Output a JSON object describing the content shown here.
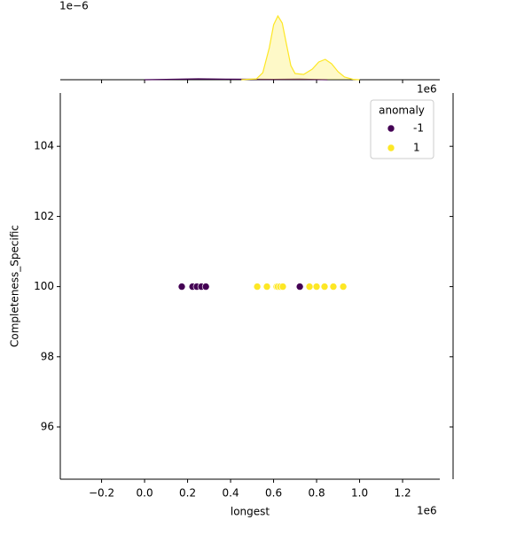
{
  "chart_data": {
    "type": "scatter",
    "xlabel": "longest",
    "ylabel": "Completeness_Specific",
    "x_offset_label": "1e6",
    "marginal_offset_label": "1e−6",
    "xlim": [
      -392000,
      1373000
    ],
    "ylim": [
      94.51,
      105.52
    ],
    "xticks": [
      {
        "value": -200000,
        "label": "−0.2"
      },
      {
        "value": 0,
        "label": "0.0"
      },
      {
        "value": 200000,
        "label": "0.2"
      },
      {
        "value": 400000,
        "label": "0.4"
      },
      {
        "value": 600000,
        "label": "0.6"
      },
      {
        "value": 800000,
        "label": "0.8"
      },
      {
        "value": 1000000,
        "label": "1.0"
      },
      {
        "value": 1200000,
        "label": "1.2"
      }
    ],
    "yticks": [
      96,
      98,
      100,
      102,
      104
    ],
    "legend_title": "anomaly",
    "legend_position": "upper right",
    "series": [
      {
        "name": "-1",
        "color": "#440154",
        "x": [
          173000,
          223000,
          243000,
          264000,
          285000,
          722000
        ],
        "y": [
          100,
          100,
          100,
          100,
          100,
          100
        ]
      },
      {
        "name": "1",
        "color": "#fde725",
        "x": [
          524000,
          569000,
          614000,
          620000,
          631000,
          643000,
          767000,
          800000,
          837000,
          878000,
          924000
        ],
        "y": [
          100,
          100,
          100,
          100,
          100,
          100,
          100,
          100,
          100,
          100,
          100
        ]
      }
    ],
    "marginal": {
      "type": "kde",
      "ylim": [
        0,
        4.5e-06
      ],
      "series": [
        {
          "color": "#440154",
          "x": [
            0,
            100000,
            250000,
            400000,
            600000,
            720000,
            850000
          ],
          "y": [
            0,
            2e-08,
            5e-08,
            3e-08,
            2e-08,
            3e-08,
            0
          ]
        },
        {
          "color": "#fde725",
          "x": [
            450000,
            520000,
            550000,
            580000,
            600000,
            620000,
            640000,
            660000,
            680000,
            700000,
            740000,
            780000,
            810000,
            840000,
            870000,
            900000,
            930000,
            970000,
            1000000
          ],
          "y": [
            0,
            5e-08,
            4e-07,
            1.8e-06,
            3.1e-06,
            3.6e-06,
            3.2e-06,
            2e-06,
            8e-07,
            3.5e-07,
            3e-07,
            6e-07,
            1e-06,
            1.15e-06,
            9e-07,
            4.5e-07,
            1.5e-07,
            2e-08,
            0
          ]
        }
      ]
    }
  }
}
